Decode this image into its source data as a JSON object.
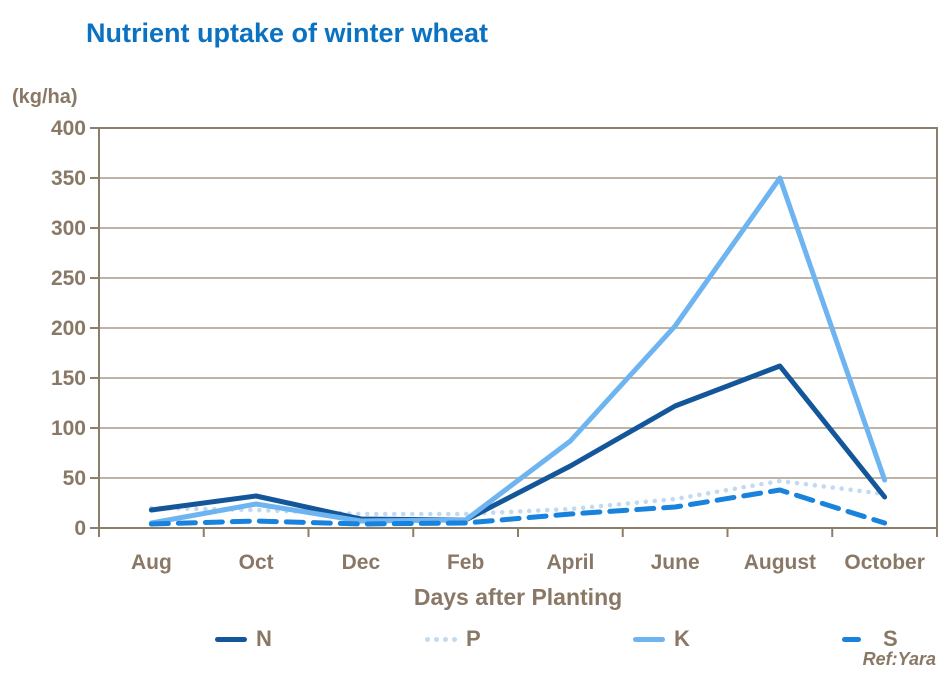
{
  "page": {
    "ref_label": "Ref:Yara",
    "colors": {
      "title": "#0b72c2",
      "text": "#8a7866",
      "grid": "#a79a8a",
      "frame": "#8d7d6b",
      "background": "#ffffff"
    }
  },
  "chart_data": {
    "type": "line",
    "title": "Nutrient uptake of winter wheat",
    "xlabel": "Days after Planting",
    "ylabel": "(kg/ha)",
    "categories": [
      "Aug",
      "Oct",
      "Dec",
      "Feb",
      "April",
      "June",
      "August",
      "October"
    ],
    "series": [
      {
        "name": "N",
        "color": "#14569a",
        "style": "solid",
        "values": [
          18,
          32,
          9,
          8,
          62,
          122,
          162,
          31
        ]
      },
      {
        "name": "P",
        "color": "#c2daf1",
        "style": "dotted",
        "values": [
          20,
          18,
          14,
          14,
          19,
          29,
          47,
          34
        ]
      },
      {
        "name": "K",
        "color": "#6eb4f0",
        "style": "solid",
        "values": [
          5,
          24,
          7,
          8,
          87,
          202,
          350,
          48
        ]
      },
      {
        "name": "S",
        "color": "#1982dc",
        "style": "dashed",
        "values": [
          4,
          7,
          4,
          5,
          14,
          21,
          38,
          5
        ]
      }
    ],
    "ylim": [
      0,
      400
    ],
    "ytick_step": 50,
    "grid": true,
    "legend_position": "bottom"
  }
}
